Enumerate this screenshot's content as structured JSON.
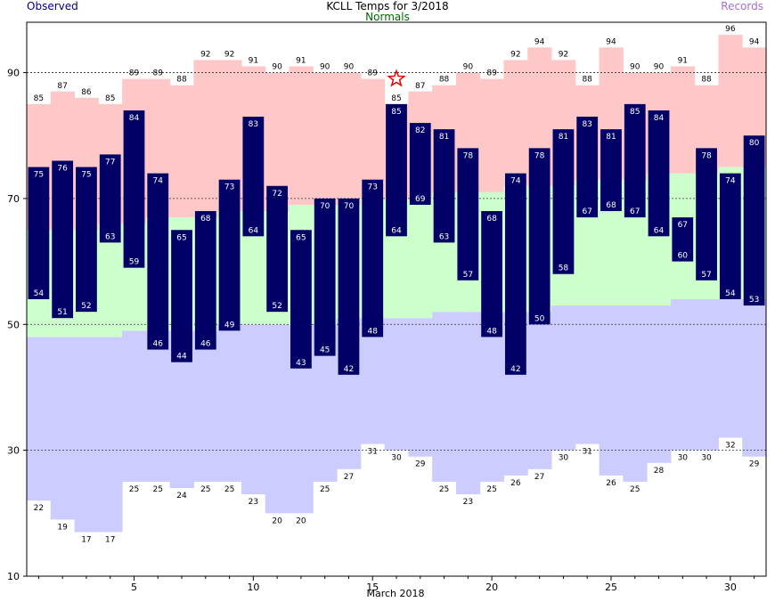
{
  "chart_data": {
    "type": "bar",
    "title": "KCLL Temps for 3/2018",
    "legend": {
      "left": "Observed",
      "center": "Normals",
      "right": "Records"
    },
    "xlabel": "March 2018",
    "x_ticks": [
      5,
      10,
      15,
      20,
      25,
      30
    ],
    "y_ticks": [
      10,
      30,
      50,
      70,
      90
    ],
    "ylim": [
      10,
      98
    ],
    "grid": "dashed horizontal at 30, 50, 70, 90",
    "days": [
      1,
      2,
      3,
      4,
      5,
      6,
      7,
      8,
      9,
      10,
      11,
      12,
      13,
      14,
      15,
      16,
      17,
      18,
      19,
      20,
      21,
      22,
      23,
      24,
      25,
      26,
      27,
      28,
      29,
      30,
      31
    ],
    "observed_high": [
      75,
      76,
      75,
      77,
      84,
      74,
      65,
      68,
      73,
      83,
      72,
      65,
      70,
      70,
      73,
      85,
      82,
      81,
      78,
      68,
      74,
      78,
      81,
      83,
      81,
      85,
      84,
      67,
      78,
      74,
      80
    ],
    "observed_low": [
      54,
      51,
      52,
      63,
      59,
      46,
      44,
      46,
      49,
      64,
      52,
      43,
      45,
      42,
      48,
      64,
      69,
      63,
      57,
      48,
      42,
      50,
      58,
      67,
      68,
      67,
      64,
      60,
      57,
      54,
      53
    ],
    "record_high": [
      85,
      87,
      86,
      85,
      89,
      89,
      88,
      92,
      92,
      91,
      90,
      91,
      90,
      90,
      89,
      85,
      87,
      88,
      90,
      89,
      92,
      94,
      92,
      88,
      94,
      90,
      90,
      91,
      88,
      96,
      94
    ],
    "record_low": [
      22,
      19,
      17,
      17,
      25,
      25,
      24,
      25,
      25,
      23,
      20,
      20,
      25,
      27,
      31,
      30,
      29,
      25,
      23,
      25,
      26,
      27,
      30,
      31,
      26,
      25,
      28,
      30,
      30,
      32,
      29
    ],
    "normal_high": [
      65,
      65,
      65,
      66,
      66,
      67,
      67,
      67,
      68,
      68,
      68,
      69,
      69,
      69,
      70,
      70,
      70,
      71,
      71,
      71,
      72,
      72,
      72,
      73,
      73,
      73,
      74,
      74,
      74,
      75,
      75
    ],
    "normal_low": [
      48,
      48,
      48,
      48,
      49,
      49,
      49,
      49,
      50,
      50,
      50,
      50,
      50,
      51,
      51,
      51,
      51,
      52,
      52,
      52,
      52,
      52,
      53,
      53,
      53,
      53,
      53,
      54,
      54,
      54,
      54
    ],
    "record_marker": {
      "day": 16,
      "value": 89
    },
    "colors": {
      "observed": "#000066",
      "record_high": "#ffc8c8",
      "normal": "#ccffcc",
      "record_low": "#ccccff",
      "legend_observed": "#000080",
      "legend_normals": "#006600",
      "legend_records": "#a070d0",
      "marker": "#ee0000"
    }
  }
}
